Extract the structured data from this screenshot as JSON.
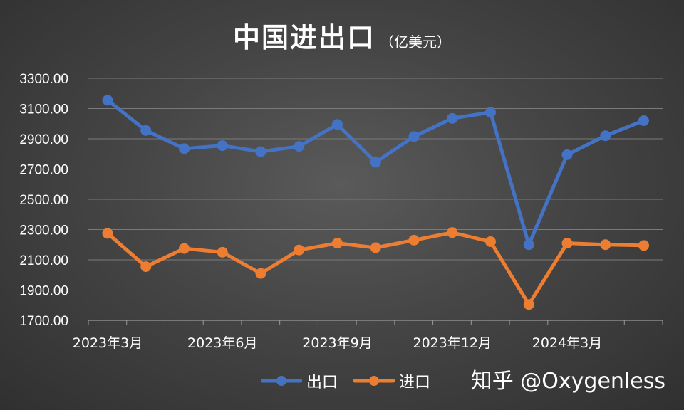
{
  "header": {
    "title": "中国进出口",
    "unit": "（亿美元）"
  },
  "watermark": "知乎 @Oxygenless",
  "chart_data": {
    "type": "line",
    "title": "中国进出口",
    "subtitle": "（亿美元）",
    "xlabel": "",
    "ylabel": "",
    "x": [
      "2023-03",
      "2023-04",
      "2023-05",
      "2023-06",
      "2023-07",
      "2023-08",
      "2023-09",
      "2023-10",
      "2023-11",
      "2023-12",
      "2024-01",
      "2024-02",
      "2024-03",
      "2024-04",
      "2024-05"
    ],
    "x_tick_labels": [
      {
        "index": 0,
        "label": "2023年3月"
      },
      {
        "index": 3,
        "label": "2023年6月"
      },
      {
        "index": 6,
        "label": "2023年9月"
      },
      {
        "index": 9,
        "label": "2023年12月"
      },
      {
        "index": 12,
        "label": "2024年3月"
      }
    ],
    "ylim": [
      1700,
      3300
    ],
    "y_ticks": [
      "1700.00",
      "1900.00",
      "2100.00",
      "2300.00",
      "2500.00",
      "2700.00",
      "2900.00",
      "3100.00",
      "3300.00"
    ],
    "grid": true,
    "legend": "bottom",
    "series": [
      {
        "name": "出口",
        "color": "#4472c4",
        "values": [
          3155,
          2955,
          2835,
          2855,
          2815,
          2850,
          2995,
          2745,
          2915,
          3035,
          3075,
          2200,
          2795,
          2920,
          3020
        ]
      },
      {
        "name": "进口",
        "color": "#ed7d31",
        "values": [
          2275,
          2055,
          2175,
          2150,
          2010,
          2165,
          2210,
          2180,
          2230,
          2280,
          2220,
          1805,
          2210,
          2200,
          2195
        ]
      }
    ]
  }
}
